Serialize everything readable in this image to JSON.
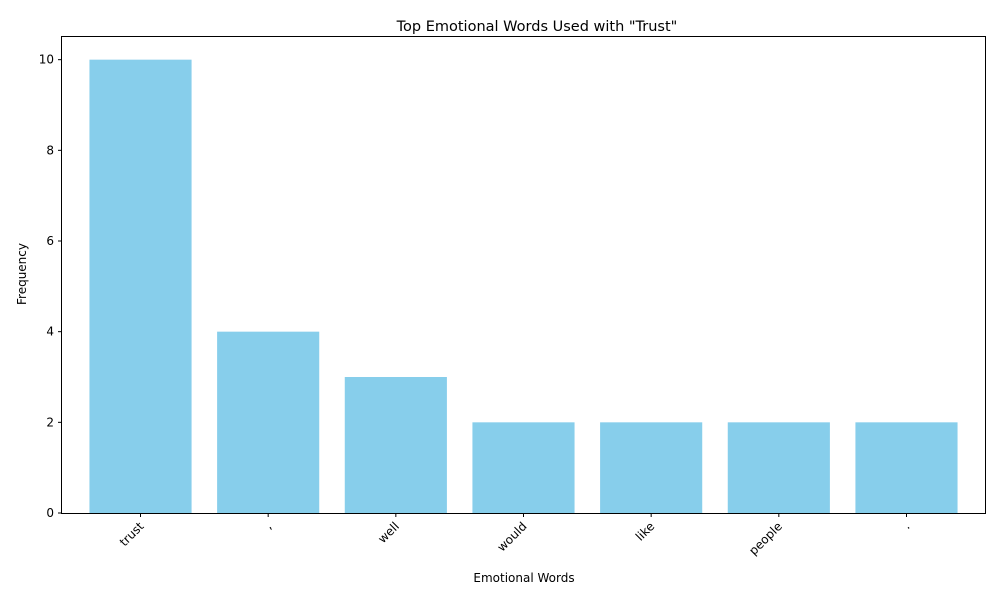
{
  "chart_data": {
    "type": "bar",
    "title": "Top Emotional Words Used with \"Trust\"",
    "xlabel": "Emotional Words",
    "ylabel": "Frequency",
    "categories": [
      "trust",
      ",",
      "well",
      "would",
      "like",
      "people",
      "."
    ],
    "values": [
      10,
      4,
      3,
      2,
      2,
      2,
      2
    ],
    "ylim": [
      0,
      10.5
    ],
    "yticks": [
      0,
      2,
      4,
      6,
      8,
      10
    ],
    "bar_color": "#87CEEB",
    "grid": false,
    "x_tick_rotation": "45-degree, right-aligned"
  }
}
